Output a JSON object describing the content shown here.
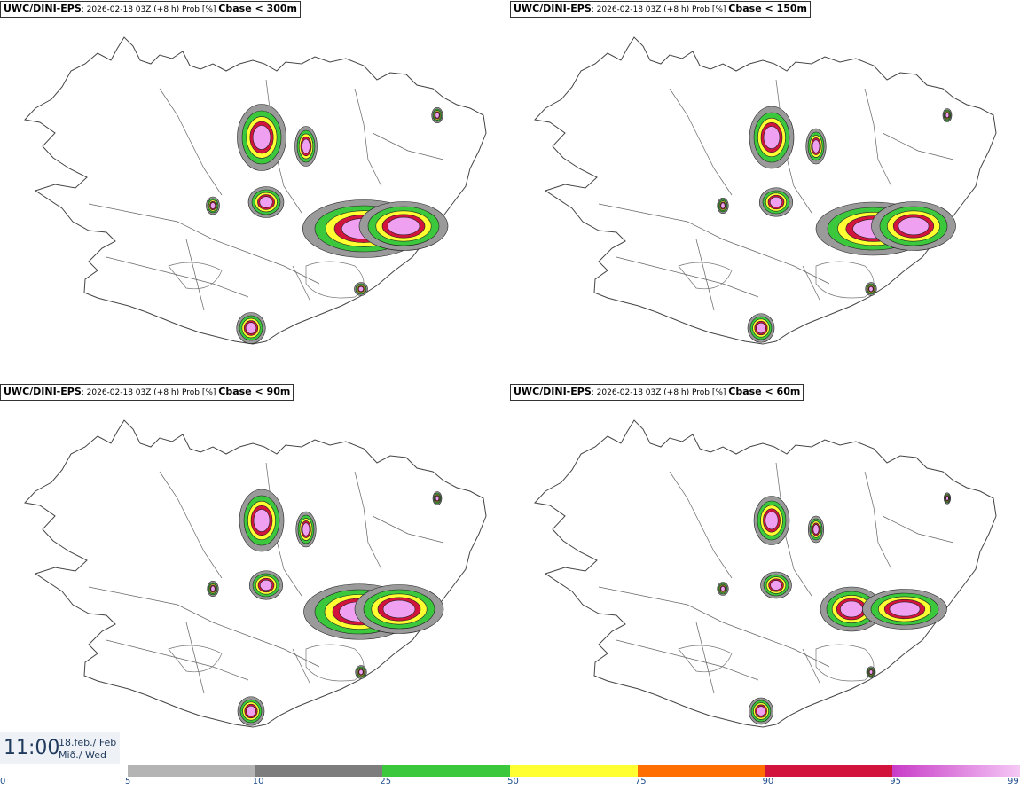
{
  "panels": [
    {
      "model": "UWC/DINI-EPS",
      "meta": ": 2026-02-18 03Z (+8 h) Prob [%] ",
      "variable": "Cbase < 300m"
    },
    {
      "model": "UWC/DINI-EPS",
      "meta": ": 2026-02-18 03Z (+8 h) Prob [%] ",
      "variable": "Cbase < 150m"
    },
    {
      "model": "UWC/DINI-EPS",
      "meta": ": 2026-02-18 03Z (+8 h) Prob [%] ",
      "variable": "Cbase < 90m"
    },
    {
      "model": "UWC/DINI-EPS",
      "meta": ": 2026-02-18 03Z (+8 h) Prob [%] ",
      "variable": "Cbase < 60m"
    }
  ],
  "valid_time": {
    "time": "11:00",
    "date_line1": "18.feb./ Feb",
    "date_line2": "Mið./ Wed"
  },
  "colorbar": {
    "labels": [
      "0",
      "5",
      "10",
      "25",
      "50",
      "75",
      "90",
      "95",
      "99"
    ],
    "segments": [
      {
        "from": 5,
        "to": 10,
        "color": "#b4b4b4"
      },
      {
        "from": 10,
        "to": 25,
        "color": "#7d7d7d"
      },
      {
        "from": 25,
        "to": 50,
        "color": "#3cc83c"
      },
      {
        "from": 50,
        "to": 75,
        "color": "#ffff32"
      },
      {
        "from": 75,
        "to": 90,
        "color": "#ff6e00"
      },
      {
        "from": 90,
        "to": 95,
        "color": "#d2143c"
      },
      {
        "from": 95,
        "to": 99,
        "color": "#c83cc8",
        "color_end": "#f5c8f5"
      }
    ]
  }
}
